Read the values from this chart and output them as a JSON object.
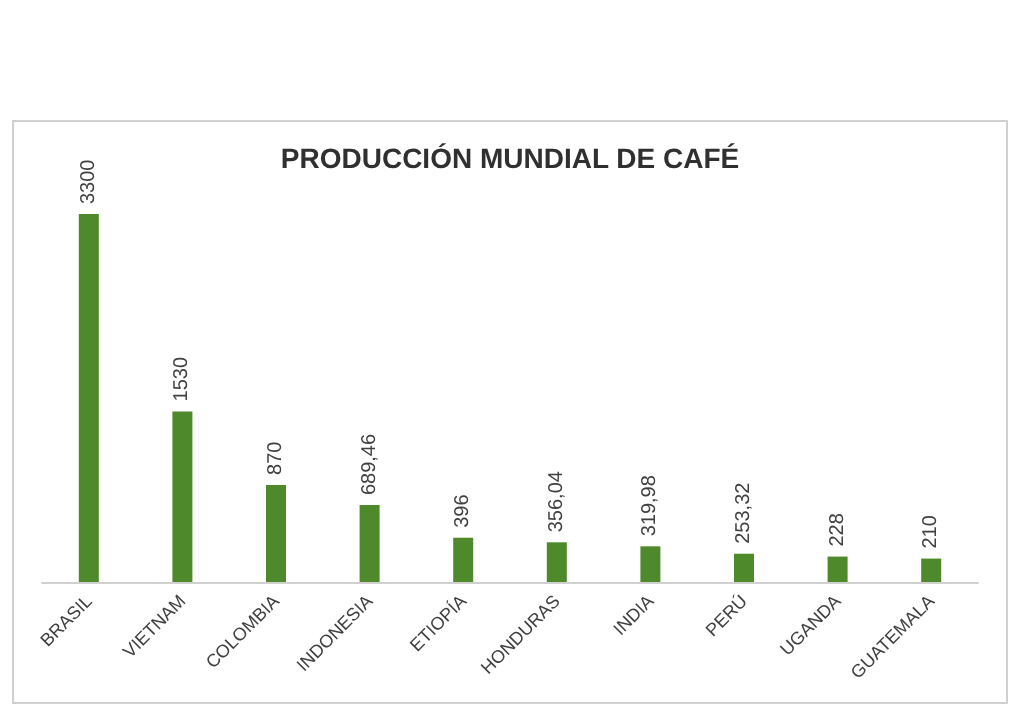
{
  "chart_data": {
    "type": "bar",
    "title": "PRODUCCIÓN MUNDIAL DE CAFÉ",
    "categories": [
      "BRASIL",
      "VIETNAM",
      "COLOMBIA",
      "INDONESIA",
      "ETIOPÍA",
      "HONDURAS",
      "INDIA",
      "PERÚ",
      "UGANDA",
      "GUATEMALA"
    ],
    "values": [
      3300,
      1530,
      870,
      689.46,
      396,
      356.04,
      319.98,
      253.32,
      228,
      210
    ],
    "value_labels": [
      "3300",
      "1530",
      "870",
      "689,46",
      "396",
      "356,04",
      "319,98",
      "253,32",
      "228",
      "210"
    ],
    "color": "#4e8a2b",
    "tick_labels": "x"
  }
}
